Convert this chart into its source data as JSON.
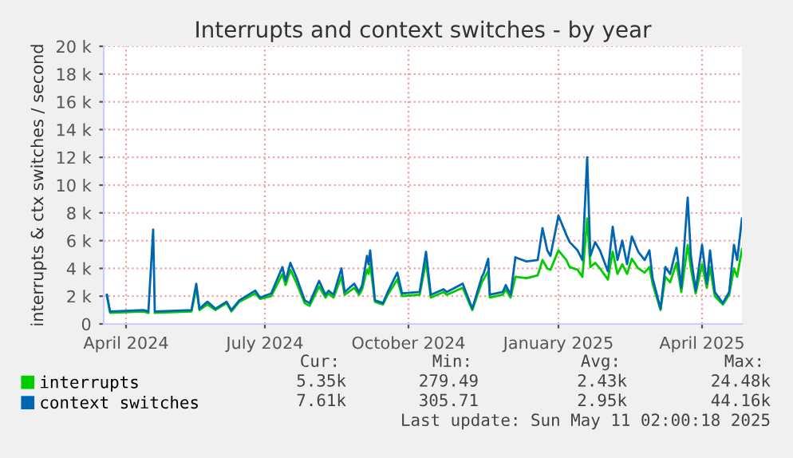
{
  "chart_data": {
    "type": "line",
    "title": "Interrupts and context switches - by year",
    "ylabel": "interrupts & ctx switches / second",
    "x": [
      "2024-04-08",
      "2024-04-10",
      "2024-05-01",
      "2024-05-04",
      "2024-05-07",
      "2024-05-08",
      "2024-05-31",
      "2024-06-03",
      "2024-06-05",
      "2024-06-10",
      "2024-06-15",
      "2024-06-22",
      "2024-06-25",
      "2024-06-30",
      "2024-07-10",
      "2024-07-13",
      "2024-07-20",
      "2024-07-27",
      "2024-07-29",
      "2024-08-01",
      "2024-08-05",
      "2024-08-10",
      "2024-08-13",
      "2024-08-19",
      "2024-08-23",
      "2024-08-25",
      "2024-08-28",
      "2024-09-02",
      "2024-09-04",
      "2024-09-10",
      "2024-09-13",
      "2024-09-15",
      "2024-09-18",
      "2024-09-19",
      "2024-09-20",
      "2024-09-23",
      "2024-09-28",
      "2024-10-01",
      "2024-10-07",
      "2024-10-10",
      "2024-10-21",
      "2024-10-25",
      "2024-10-28",
      "2024-11-05",
      "2024-11-07",
      "2024-11-17",
      "2024-11-23",
      "2024-11-29",
      "2024-11-30",
      "2024-12-03",
      "2024-12-04",
      "2024-12-12",
      "2024-12-14",
      "2024-12-17",
      "2024-12-20",
      "2024-12-27",
      "2025-01-03",
      "2025-01-06",
      "2025-01-09",
      "2025-01-11",
      "2025-01-16",
      "2025-01-21",
      "2025-01-23",
      "2025-01-28",
      "2025-01-31",
      "2025-02-03",
      "2025-02-05",
      "2025-02-08",
      "2025-02-11",
      "2025-02-16",
      "2025-02-19",
      "2025-02-22",
      "2025-02-25",
      "2025-02-28",
      "2025-03-03",
      "2025-03-07",
      "2025-03-11",
      "2025-03-14",
      "2025-03-16",
      "2025-03-21",
      "2025-03-24",
      "2025-03-27",
      "2025-03-31",
      "2025-04-03",
      "2025-04-07",
      "2025-04-09",
      "2025-04-12",
      "2025-04-16",
      "2025-04-19",
      "2025-04-21",
      "2025-04-24",
      "2025-04-29",
      "2025-05-03",
      "2025-05-06",
      "2025-05-08",
      "2025-05-11"
    ],
    "series": [
      {
        "name": "interrupts",
        "color": "#00cc00",
        "values": [
          2000,
          800,
          900,
          800,
          null,
          800,
          900,
          2600,
          1000,
          1400,
          1000,
          1500,
          900,
          1600,
          2200,
          1800,
          2000,
          3600,
          2800,
          3900,
          2900,
          1500,
          1300,
          2700,
          1900,
          2200,
          1900,
          3400,
          2100,
          2600,
          2100,
          2500,
          3900,
          3600,
          4300,
          1600,
          1400,
          2100,
          3200,
          2000,
          2100,
          4500,
          1900,
          2300,
          2100,
          2600,
          1000,
          3000,
          3200,
          3800,
          1900,
          2100,
          2500,
          1900,
          3400,
          3300,
          3500,
          4600,
          4000,
          3900,
          5300,
          4600,
          4100,
          3900,
          3400,
          7600,
          4100,
          4400,
          4000,
          3200,
          5200,
          3600,
          4300,
          3600,
          4700,
          4000,
          3700,
          4100,
          2900,
          1000,
          3400,
          3000,
          4400,
          2300,
          5700,
          4000,
          2200,
          4300,
          2600,
          4100,
          2000,
          1400,
          2100,
          4000,
          3400,
          5400
        ]
      },
      {
        "name": "context switches",
        "color": "#0066b3",
        "values": [
          2100,
          900,
          1000,
          900,
          6800,
          900,
          1000,
          2900,
          1100,
          1600,
          1100,
          1600,
          1000,
          1700,
          2400,
          1900,
          2200,
          4100,
          3100,
          4400,
          3300,
          1700,
          1500,
          3100,
          2100,
          2400,
          2100,
          4000,
          2300,
          2900,
          2300,
          2800,
          4900,
          4300,
          5300,
          1700,
          1500,
          2300,
          3700,
          2200,
          2300,
          5200,
          2100,
          2500,
          2300,
          2900,
          1100,
          3400,
          3600,
          4700,
          2100,
          2300,
          2800,
          2100,
          4800,
          4500,
          4600,
          6900,
          5300,
          4900,
          7800,
          6400,
          5900,
          5300,
          4600,
          12000,
          4900,
          5900,
          5300,
          3800,
          7000,
          4600,
          6000,
          4300,
          6300,
          5200,
          4600,
          5300,
          3300,
          1100,
          4100,
          3600,
          5500,
          2600,
          9100,
          4900,
          2400,
          5700,
          2900,
          5300,
          2300,
          1500,
          2300,
          5700,
          4600,
          7600
        ]
      }
    ],
    "xlim": [
      "2024-04-06",
      "2025-05-11"
    ],
    "xticks": [
      {
        "value": "2024-04-20",
        "label": "April 2024"
      },
      {
        "value": "2024-07-16",
        "label": "July 2024"
      },
      {
        "value": "2024-10-14",
        "label": "October 2024"
      },
      {
        "value": "2025-01-16",
        "label": "January 2025"
      },
      {
        "value": "2025-04-16",
        "label": "April 2025"
      }
    ],
    "ylim": [
      0,
      20000
    ],
    "yticks": [
      0,
      {
        "value": 2000,
        "label": "2 k"
      },
      {
        "value": 4000,
        "label": "4 k"
      },
      {
        "value": 6000,
        "label": "6 k"
      },
      {
        "value": 8000,
        "label": "8 k"
      },
      {
        "value": 10000,
        "label": "10 k"
      },
      {
        "value": 12000,
        "label": "12 k"
      },
      {
        "value": 14000,
        "label": "14 k"
      },
      {
        "value": 16000,
        "label": "16 k"
      },
      {
        "value": 18000,
        "label": "18 k"
      },
      {
        "value": 20000,
        "label": "20 k"
      }
    ],
    "grid": true,
    "legend": "bottom",
    "marker": "none",
    "line_style": "solid",
    "annotations": [
      "Cur:",
      "Min:",
      "Avg:",
      "Max:",
      "5.35k",
      "279.49",
      "2.43k",
      "24.48k",
      "7.61k",
      "305.71",
      "2.95k",
      "44.16k",
      "Last update: Sun May 11 02:00:18 2025"
    ]
  }
}
